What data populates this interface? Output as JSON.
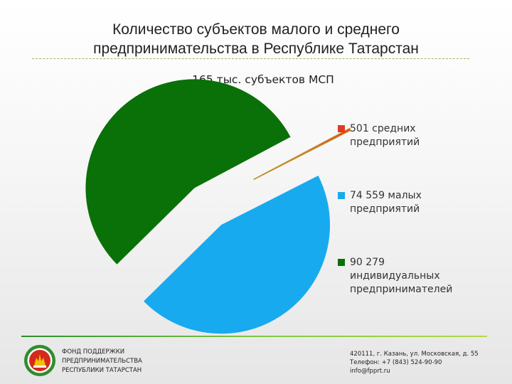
{
  "title_line1": "Количество субъектов малого и среднего",
  "title_line2": "предпринимательства в Республике Татарстан",
  "chart_data": {
    "type": "pie",
    "title": "165 тыс. субъектов МСП",
    "slices": [
      {
        "label_line1": "501 средних",
        "label_line2": "предприятий",
        "label_line3": "",
        "value": 501,
        "color": "#e23b1f"
      },
      {
        "label_line1": "74 559 малых",
        "label_line2": "предприятий",
        "label_line3": "",
        "value": 74559,
        "color": "#18aaef"
      },
      {
        "label_line1": "90 279",
        "label_line2": "индивидуальных",
        "label_line3": "предпринимателей",
        "value": 90279,
        "color": "#0a7008"
      }
    ],
    "legend_position": "right",
    "exploded": true
  },
  "footer": {
    "fund_line1": "ФОНД ПОДДЕРЖКИ",
    "fund_line2": "ПРЕДПРИНИМАТЕЛЬСТВА",
    "fund_line3": "РЕСПУБЛИКИ ТАТАРСТАН",
    "address": "420111, г. Казань, ул. Московская, д. 55",
    "phone": "Телефон: +7 (843) 524-90-90",
    "email": "info@fpprt.ru"
  },
  "colors": {
    "accent_green": "#2f8d2f",
    "logo_red": "#d32a1e",
    "logo_gold": "#f2c200"
  }
}
